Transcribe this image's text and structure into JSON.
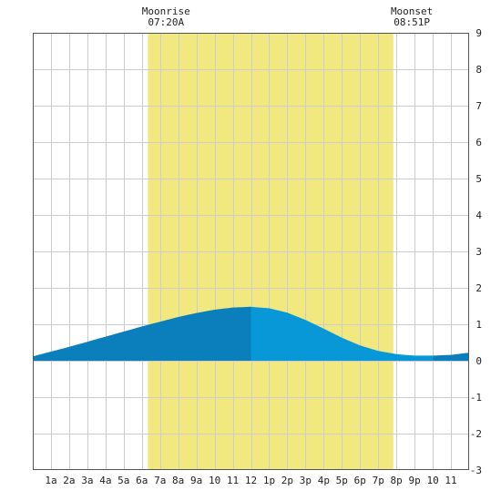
{
  "moon": {
    "rise_label": "Moonrise",
    "rise_time": "07:20A",
    "set_label": "Moonset",
    "set_time": "08:51P"
  },
  "colors": {
    "background": "#ffffff",
    "grid": "#cccccc",
    "daylight": "#f2e880",
    "tide_dark": "#0a7fbc",
    "tide_light": "#0898d8",
    "frame": "#555555"
  },
  "chart_data": {
    "type": "area",
    "title": "",
    "xlabel": "",
    "ylabel": "",
    "xlim": [
      0,
      24
    ],
    "ylim": [
      -3,
      9
    ],
    "y_ticks": [
      "9",
      "8",
      "7",
      "6",
      "5",
      "4",
      "3",
      "2",
      "1",
      "0",
      "-1",
      "-2",
      "-3"
    ],
    "x_ticks": [
      "1a",
      "2a",
      "3a",
      "4a",
      "5a",
      "6a",
      "7a",
      "8a",
      "9a",
      "10",
      "11",
      "12",
      "1p",
      "2p",
      "3p",
      "4p",
      "5p",
      "6p",
      "7p",
      "8p",
      "9p",
      "10",
      "11"
    ],
    "highlight_band": {
      "from_hour": 6.33,
      "to_hour": 19.83
    },
    "moonrise_hour": 7.33,
    "moonset_hour": 20.85,
    "grid": true,
    "series": [
      {
        "x": [
          0,
          1,
          2,
          3,
          4,
          5,
          6,
          7,
          8,
          9,
          10,
          11,
          12,
          13,
          14,
          15,
          16,
          17,
          18,
          19,
          20,
          21,
          22,
          23,
          24
        ],
        "values": [
          0.12,
          0.25,
          0.38,
          0.52,
          0.66,
          0.8,
          0.94,
          1.07,
          1.2,
          1.31,
          1.4,
          1.46,
          1.48,
          1.44,
          1.32,
          1.12,
          0.88,
          0.63,
          0.42,
          0.27,
          0.18,
          0.14,
          0.14,
          0.16,
          0.22
        ]
      }
    ]
  }
}
